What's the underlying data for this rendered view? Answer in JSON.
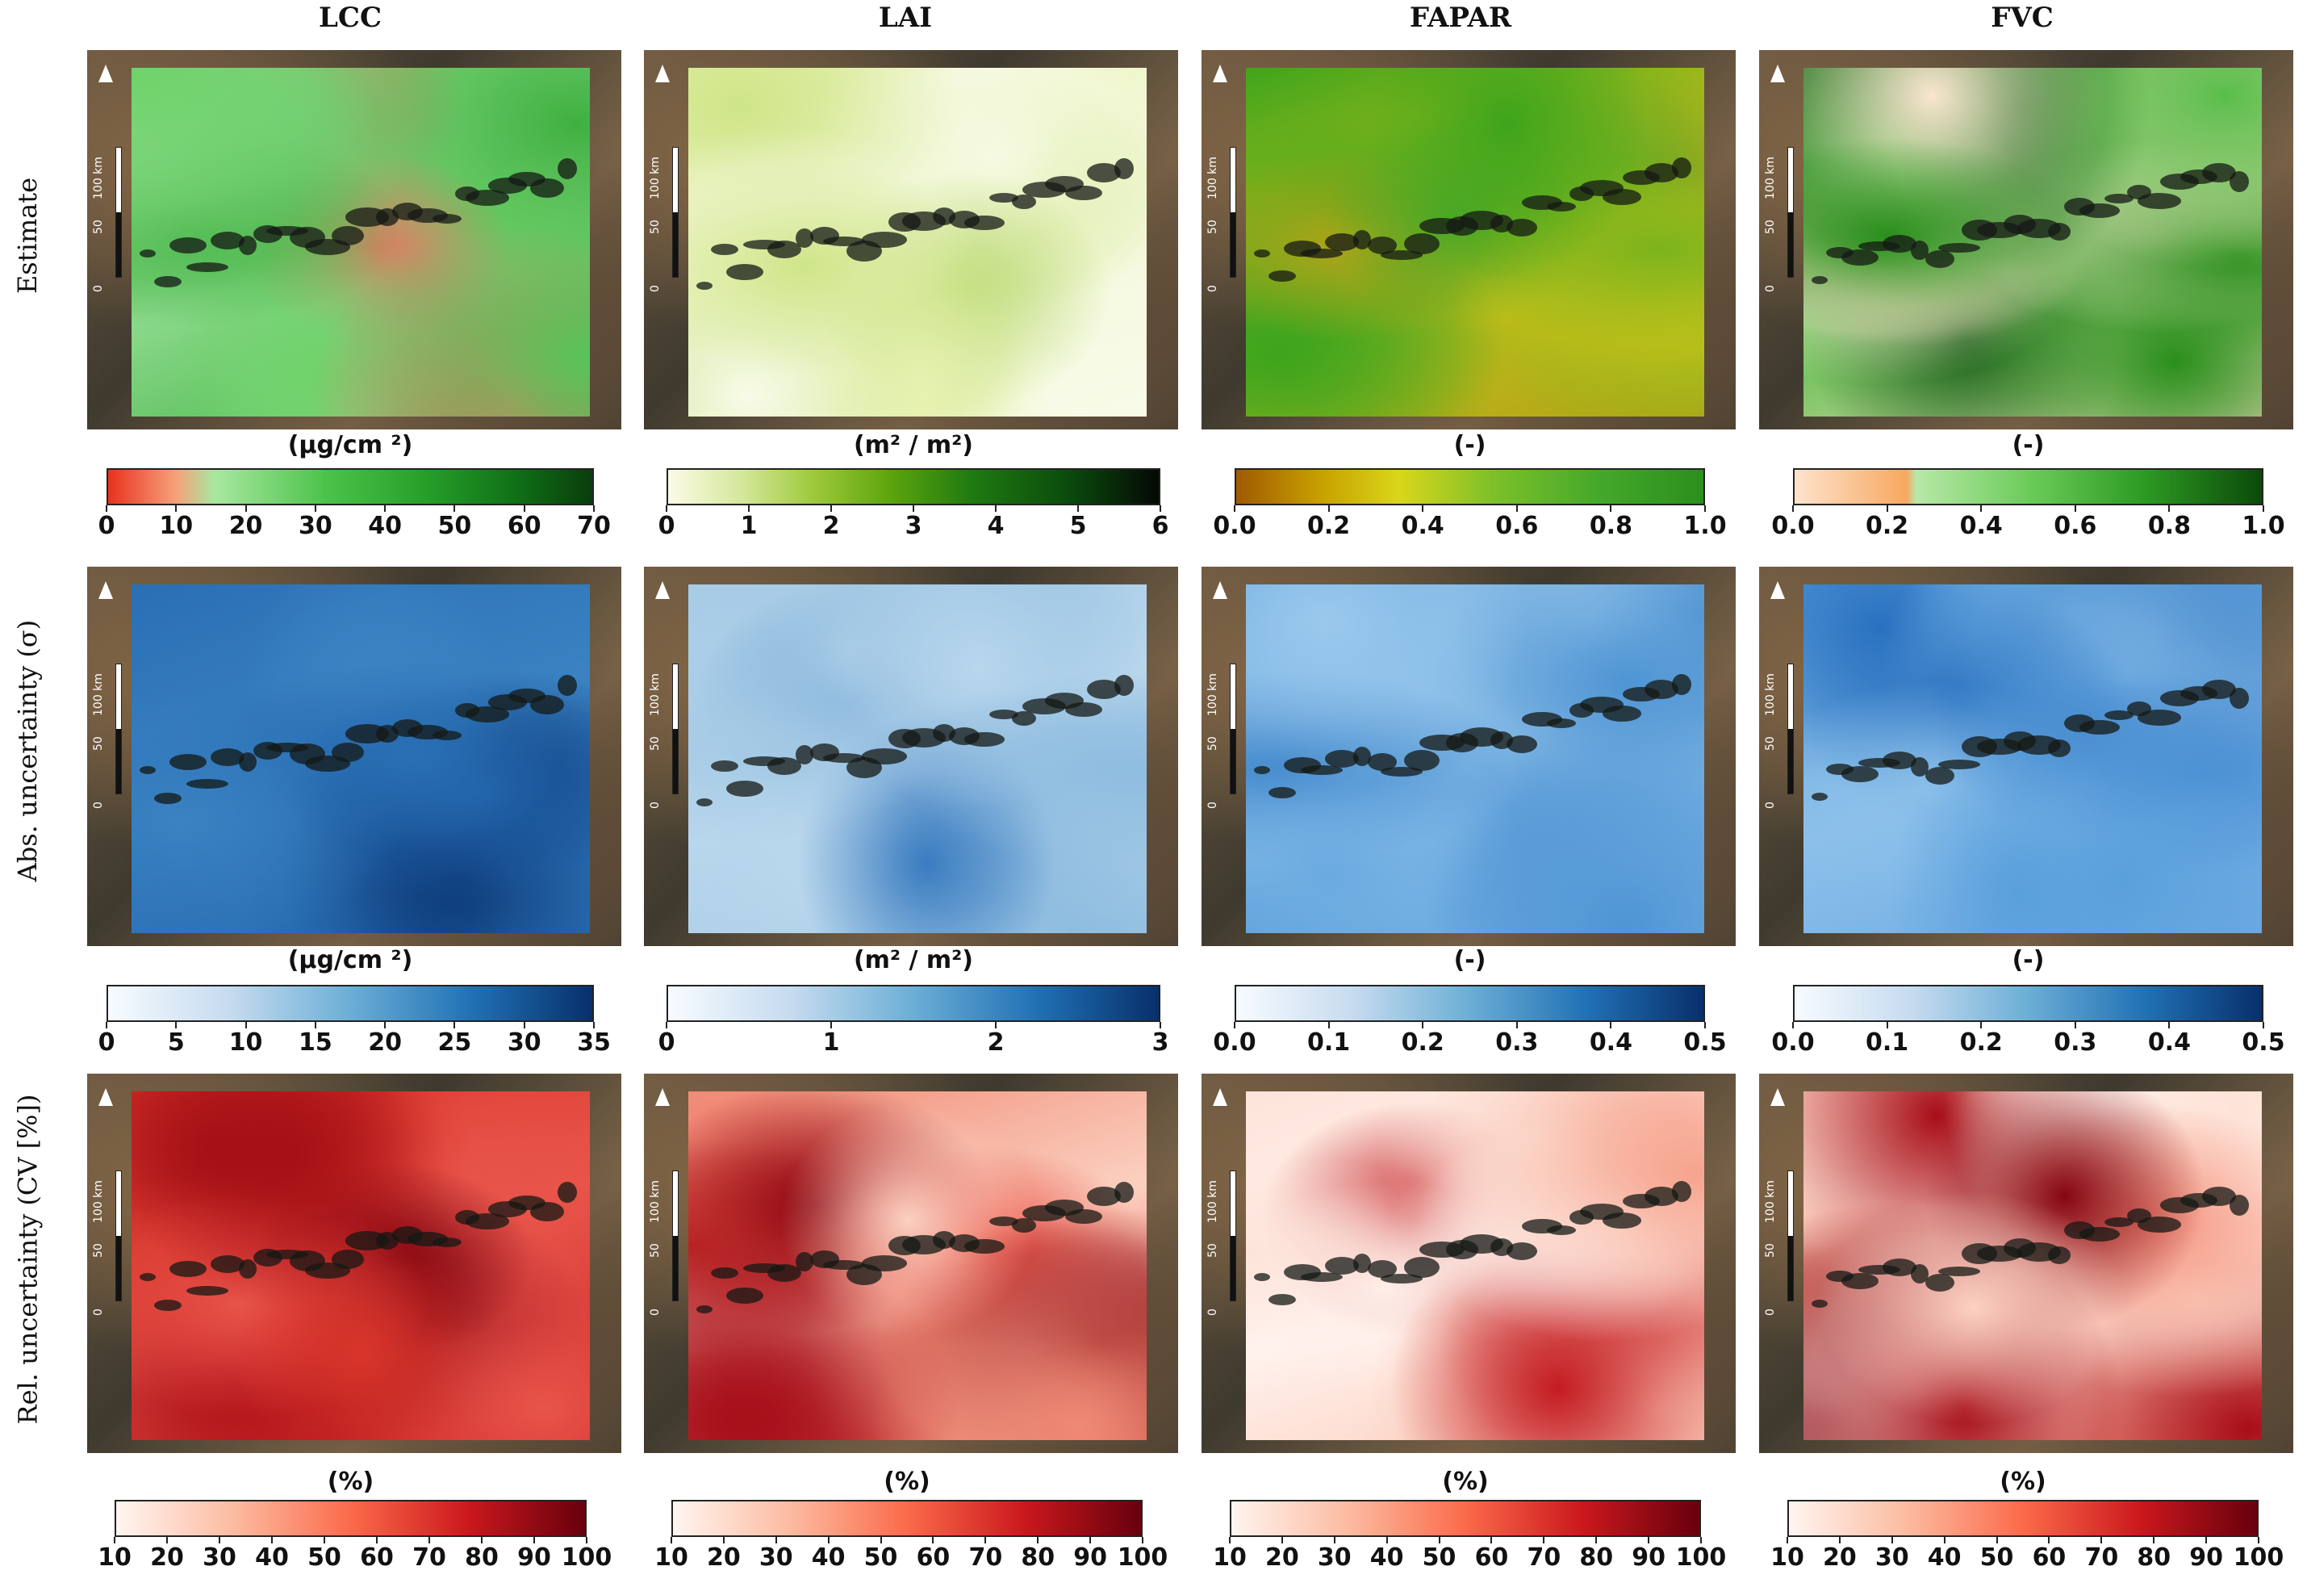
{
  "columns": [
    "LCC",
    "LAI",
    "FAPAR",
    "FVC"
  ],
  "rows": [
    "Estimate",
    "Abs. uncertainty (σ)",
    "Rel. uncertainty (CV [%])"
  ],
  "scalebar": {
    "labels": [
      "0",
      "50",
      "100 km"
    ]
  },
  "colorbars": {
    "estimate": [
      {
        "unit": "(μg/cm ²)",
        "ticks": [
          "0",
          "10",
          "20",
          "30",
          "40",
          "50",
          "60",
          "70"
        ],
        "colors": [
          "#e8321e",
          "#f6a07a",
          "#a8e8a0",
          "#4cc24a",
          "#27a02a",
          "#0f6e16",
          "#0a3d0c"
        ],
        "stops": [
          0,
          0.14,
          0.22,
          0.45,
          0.65,
          0.85,
          1.0
        ]
      },
      {
        "unit": "(m² / m²)",
        "ticks": [
          "0",
          "1",
          "2",
          "3",
          "4",
          "5",
          "6"
        ],
        "colors": [
          "#fbfbe6",
          "#d4e79a",
          "#9cc83a",
          "#5ea50e",
          "#1f7a10",
          "#0a4a0d",
          "#050805"
        ],
        "stops": [
          0,
          0.15,
          0.3,
          0.45,
          0.62,
          0.82,
          1.0
        ]
      },
      {
        "unit": "(-)",
        "ticks": [
          "0.0",
          "0.2",
          "0.4",
          "0.6",
          "0.8",
          "1.0"
        ],
        "colors": [
          "#a05a00",
          "#c8a000",
          "#d9d61a",
          "#7dc02a",
          "#43a82a",
          "#2b8f1c"
        ],
        "stops": [
          0,
          0.18,
          0.35,
          0.55,
          0.78,
          1.0
        ]
      },
      {
        "unit": "(-)",
        "ticks": [
          "0.0",
          "0.2",
          "0.4",
          "0.6",
          "0.8",
          "1.0"
        ],
        "colors": [
          "#fde3cc",
          "#f8a860",
          "#b8e8a8",
          "#6ccc5a",
          "#2c9a22",
          "#0c4a0a"
        ],
        "stops": [
          0,
          0.24,
          0.26,
          0.5,
          0.75,
          1.0
        ]
      }
    ],
    "abs": [
      {
        "unit": "(μg/cm ²)",
        "ticks": [
          "0",
          "5",
          "10",
          "15",
          "20",
          "25",
          "30",
          "35"
        ],
        "colors": [
          "#f7fbff",
          "#c6dbef",
          "#6baed6",
          "#2171b5",
          "#08306b"
        ],
        "stops": [
          0,
          0.25,
          0.5,
          0.75,
          1.0
        ]
      },
      {
        "unit": "(m²  / m²)",
        "ticks": [
          "0",
          "1",
          "2",
          "3"
        ],
        "colors": [
          "#f7fbff",
          "#c6dbef",
          "#6baed6",
          "#2171b5",
          "#08306b"
        ],
        "stops": [
          0,
          0.25,
          0.5,
          0.75,
          1.0
        ]
      },
      {
        "unit": "(-)",
        "ticks": [
          "0.0",
          "0.1",
          "0.2",
          "0.3",
          "0.4",
          "0.5"
        ],
        "colors": [
          "#f7fbff",
          "#c6dbef",
          "#6baed6",
          "#2171b5",
          "#08306b"
        ],
        "stops": [
          0,
          0.25,
          0.5,
          0.75,
          1.0
        ]
      },
      {
        "unit": "(-)",
        "ticks": [
          "0.0",
          "0.1",
          "0.2",
          "0.3",
          "0.4",
          "0.5"
        ],
        "colors": [
          "#f7fbff",
          "#c6dbef",
          "#6baed6",
          "#2171b5",
          "#08306b"
        ],
        "stops": [
          0,
          0.25,
          0.5,
          0.75,
          1.0
        ]
      }
    ],
    "rel": [
      {
        "unit": "(%)",
        "ticks": [
          "10",
          "20",
          "30",
          "40",
          "50",
          "60",
          "70",
          "80",
          "90",
          "100"
        ],
        "colors": [
          "#fff5f0",
          "#fcbba1",
          "#fb6a4a",
          "#cb181d",
          "#67000d"
        ],
        "stops": [
          0,
          0.25,
          0.5,
          0.75,
          1.0
        ]
      },
      {
        "unit": "(%)",
        "ticks": [
          "10",
          "20",
          "30",
          "40",
          "50",
          "60",
          "70",
          "80",
          "90",
          "100"
        ],
        "colors": [
          "#fff5f0",
          "#fcbba1",
          "#fb6a4a",
          "#cb181d",
          "#67000d"
        ],
        "stops": [
          0,
          0.25,
          0.5,
          0.75,
          1.0
        ]
      },
      {
        "unit": "(%)",
        "ticks": [
          "10",
          "20",
          "30",
          "40",
          "50",
          "60",
          "70",
          "80",
          "90",
          "100"
        ],
        "colors": [
          "#fff5f0",
          "#fcbba1",
          "#fb6a4a",
          "#cb181d",
          "#67000d"
        ],
        "stops": [
          0,
          0.25,
          0.5,
          0.75,
          1.0
        ]
      },
      {
        "unit": "(%)",
        "ticks": [
          "10",
          "20",
          "30",
          "40",
          "50",
          "60",
          "70",
          "80",
          "90",
          "100"
        ],
        "colors": [
          "#fff5f0",
          "#fcbba1",
          "#fb6a4a",
          "#cb181d",
          "#67000d"
        ],
        "stops": [
          0,
          0.25,
          0.5,
          0.75,
          1.0
        ]
      }
    ]
  },
  "map_fill": {
    "estimate": [
      [
        "#6fd36a",
        "#58c458",
        "#8ad88a",
        "#e07860",
        "#3fb040"
      ],
      [
        "#e7f2b0",
        "#cfe588",
        "#f4f8dc",
        "#b8d870",
        "#f8fbe8"
      ],
      [
        "#3fa51c",
        "#7cb41c",
        "#c6c21a",
        "#4ca828",
        "#b2a418"
      ],
      [
        "#2a8f1c",
        "#f9e6cf",
        "#58be4a",
        "#0f5a10",
        "#f7dcc0"
      ]
    ],
    "abs": [
      [
        "#2a6fb4",
        "#1f5fa6",
        "#3a82c2",
        "#0d3a78",
        "#2a70b4"
      ],
      [
        "#a6cbe6",
        "#8fbde0",
        "#b8d6ec",
        "#3a7cc0",
        "#9ec6e4"
      ],
      [
        "#6aaae0",
        "#4f95d4",
        "#9ac8ec",
        "#2f79c4",
        "#7bb4e6"
      ],
      [
        "#5aa0dc",
        "#4a8fd2",
        "#8cc0ea",
        "#2a72c0",
        "#6aa8e2"
      ]
    ],
    "rel": [
      [
        "#d8352a",
        "#a50f15",
        "#e8544a",
        "#7a000e",
        "#c41a1f"
      ],
      [
        "#f08a74",
        "#a8101a",
        "#fbd0c0",
        "#8a0712",
        "#e8463a"
      ],
      [
        "#fde4da",
        "#f6a48e",
        "#fff3ee",
        "#c41c22",
        "#fbc8b6"
      ],
      [
        "#fcd2c2",
        "#a80e18",
        "#fff1ea",
        "#860611",
        "#f4907a"
      ]
    ]
  }
}
